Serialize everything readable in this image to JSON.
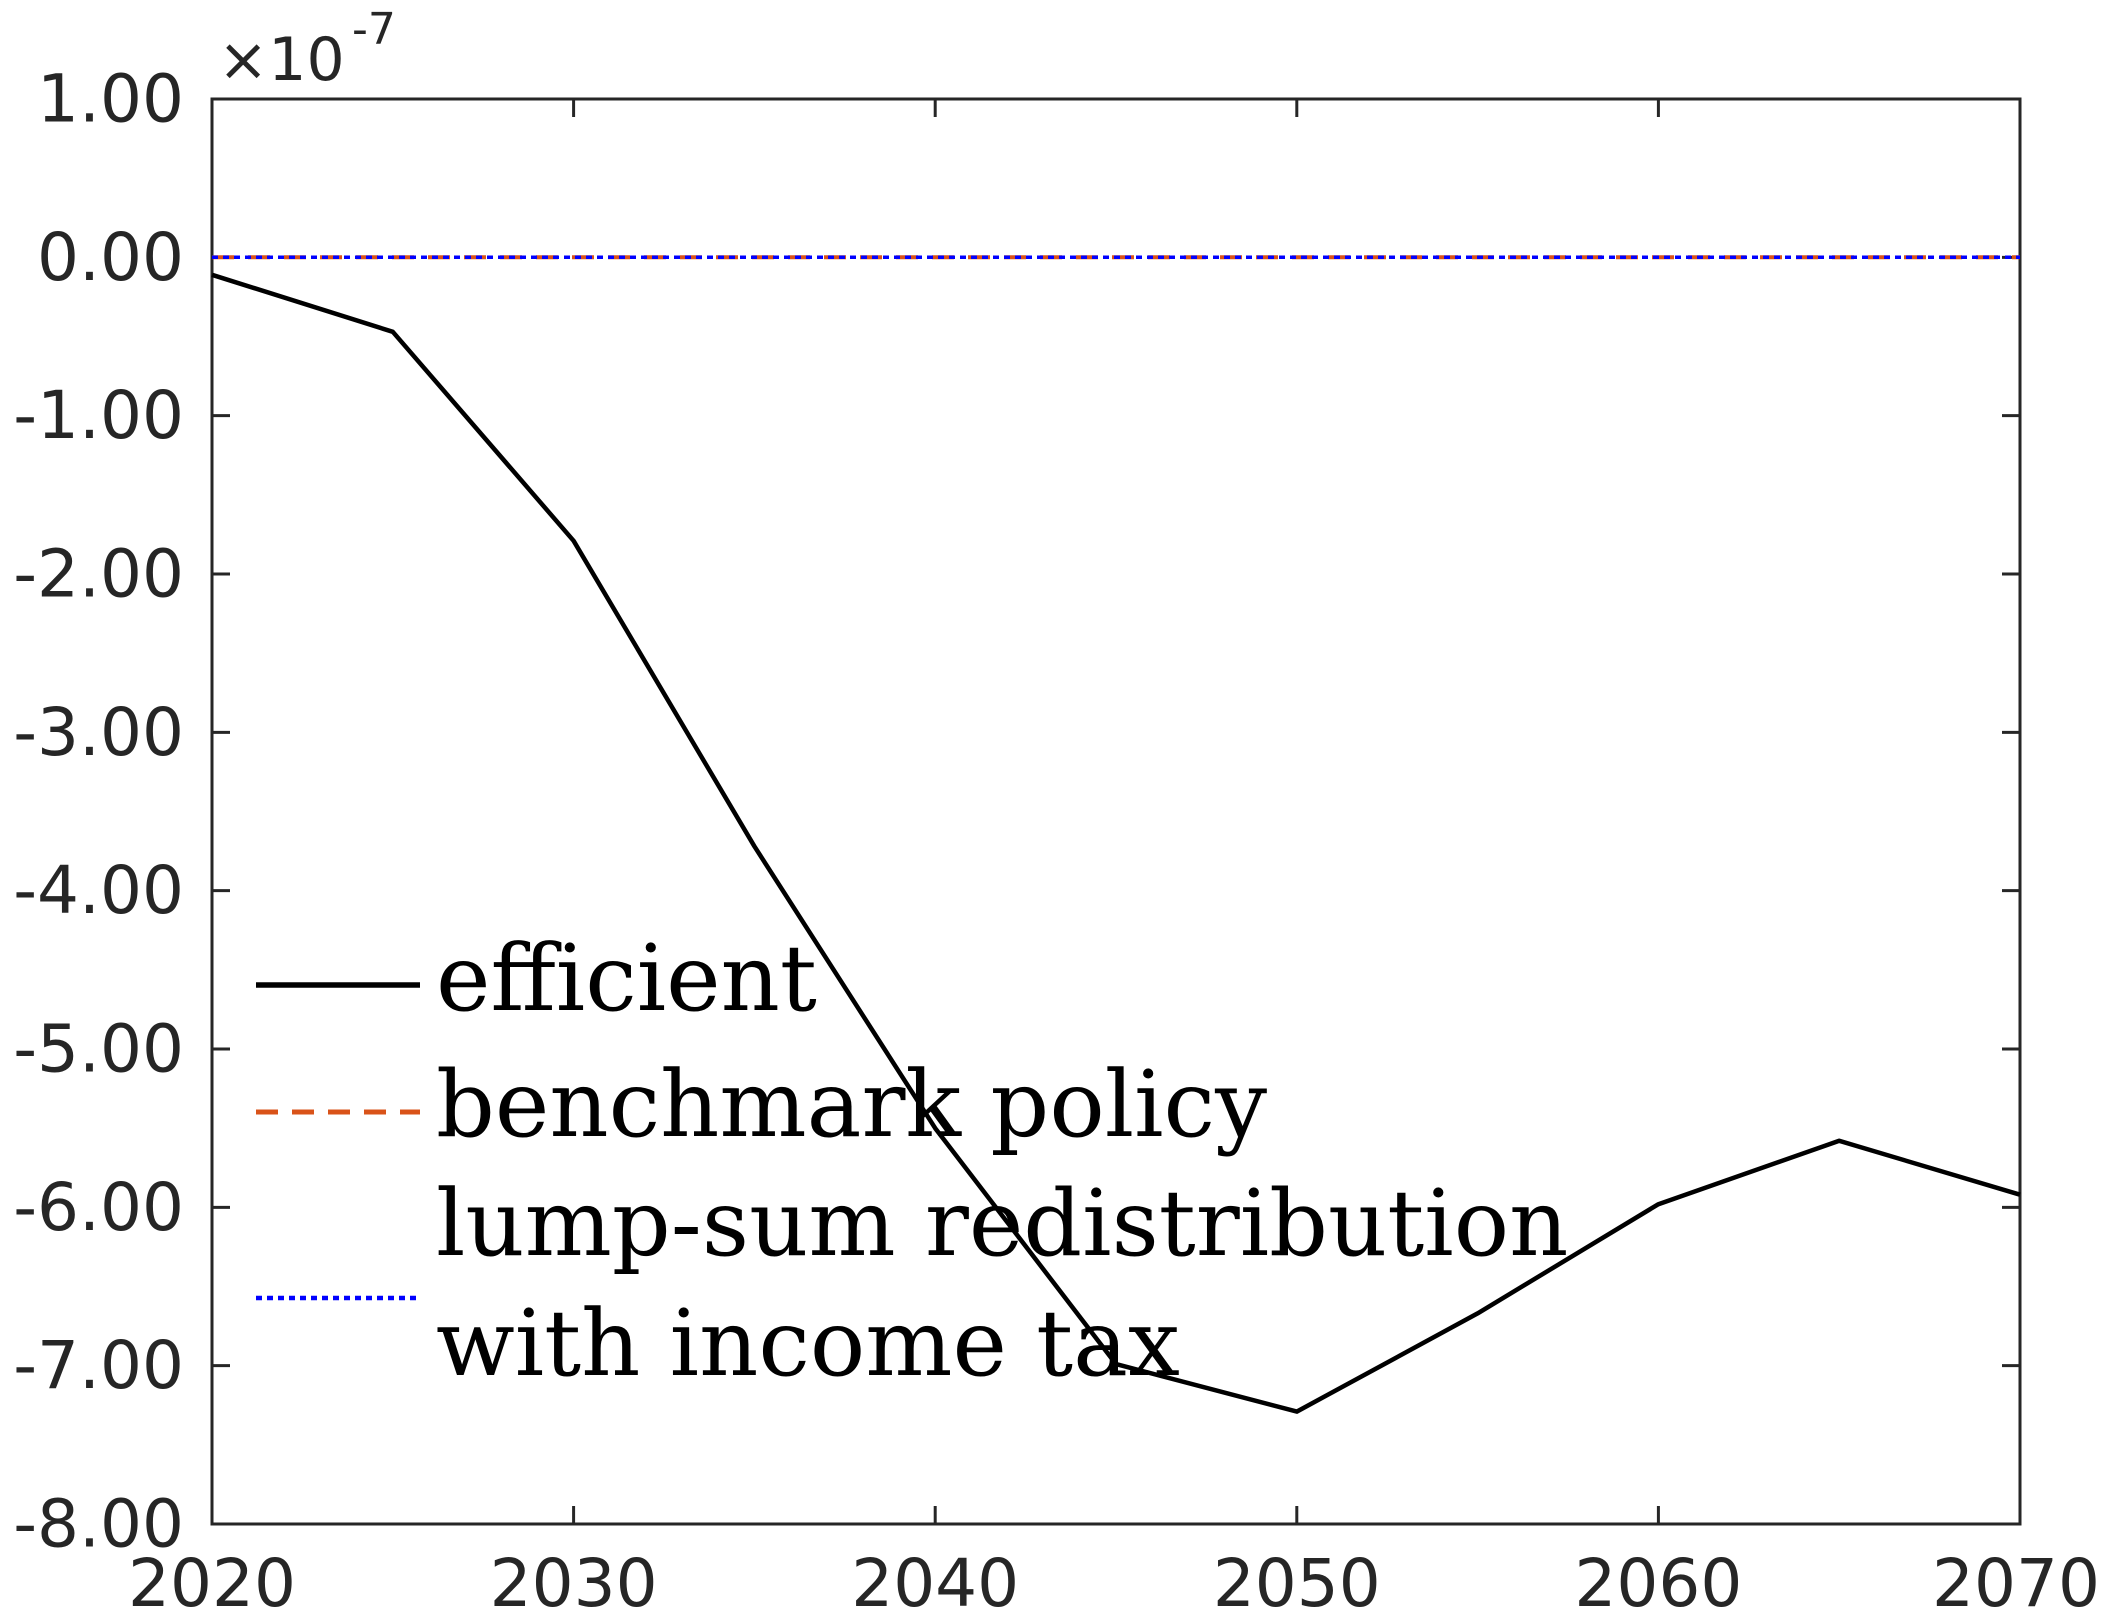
{
  "chart_data": {
    "type": "line",
    "title": "",
    "xlabel": "",
    "ylabel": "",
    "xlim": [
      2020,
      2070
    ],
    "ylim": [
      -8e-07,
      1e-07
    ],
    "x_ticks": [
      2020,
      2030,
      2040,
      2050,
      2060,
      2070
    ],
    "x_tick_labels": [
      "2020",
      "2030",
      "2040",
      "2050",
      "2060",
      "2070"
    ],
    "y_ticks": [
      1,
      0,
      -1,
      -2,
      -3,
      -4,
      -5,
      -6,
      -7,
      -8
    ],
    "y_tick_labels": [
      "1.00",
      "0.00",
      "-1.00",
      "-2.00",
      "-3.00",
      "-4.00",
      "-5.00",
      "-6.00",
      "-7.00",
      "-8.00"
    ],
    "y_exponent": {
      "prefix": "×10",
      "power": "-7"
    },
    "grid": false,
    "legend_position": "lower-left",
    "x": [
      2020,
      2025,
      2030,
      2035,
      2040,
      2045,
      2050,
      2055,
      2060,
      2065,
      2070
    ],
    "series": [
      {
        "name": "efficient",
        "color": "#000000",
        "style": "solid",
        "values": [
          -1.1e-08,
          -4.7e-08,
          -1.79e-07,
          -3.72e-07,
          -5.5e-07,
          -6.99e-07,
          -7.29e-07,
          -6.67e-07,
          -5.98e-07,
          -5.58e-07,
          -5.92e-07
        ]
      },
      {
        "name": "benchmark policy",
        "color": "#D95319",
        "style": "dashed",
        "values": [
          0,
          0,
          0,
          0,
          0,
          0,
          0,
          0,
          0,
          0,
          0
        ]
      },
      {
        "name": "lump-sum redistribution with income tax",
        "legend_lines": [
          "lump-sum redistribution",
          "with income tax"
        ],
        "color": "#0000FF",
        "style": "dotted",
        "values": [
          0,
          0,
          0,
          0,
          0,
          0,
          0,
          0,
          0,
          0,
          0
        ]
      }
    ]
  }
}
